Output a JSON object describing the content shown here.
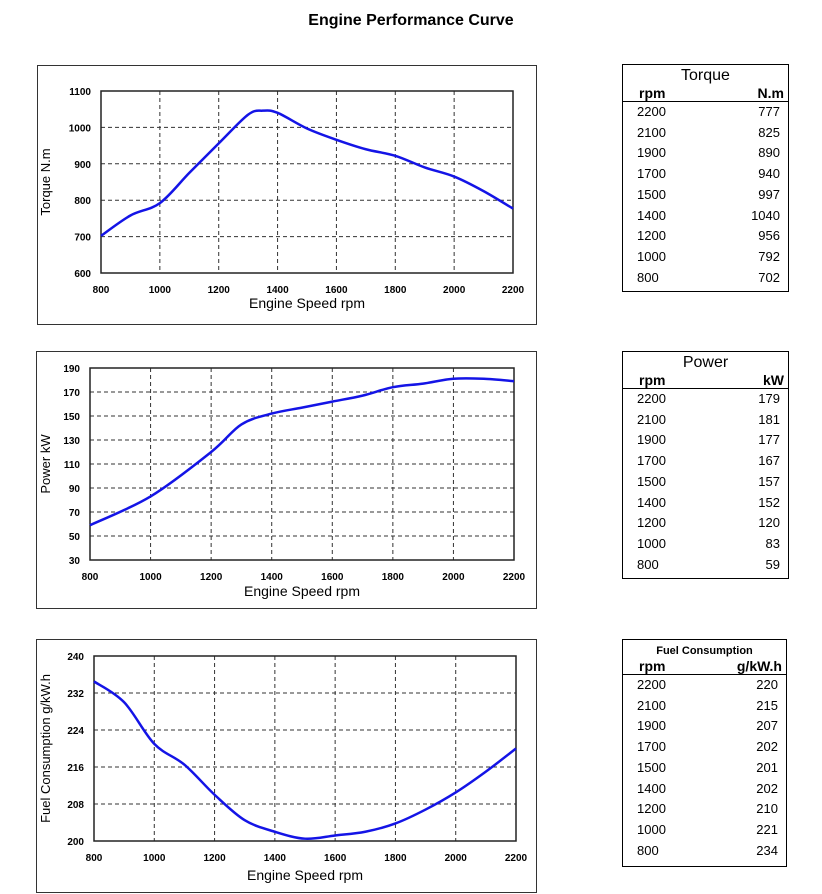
{
  "title": "Engine Performance Curve",
  "chart_data": [
    {
      "type": "line",
      "xlabel": "Engine Speed rpm",
      "ylabel": "Torque N.m",
      "xlim": [
        800,
        2200
      ],
      "ylim": [
        600,
        1100
      ],
      "xticks": [
        800,
        1000,
        1200,
        1400,
        1600,
        1800,
        2000,
        2200
      ],
      "yticks": [
        600,
        700,
        800,
        900,
        1000,
        1100
      ],
      "grid": true,
      "color": "#1414e6",
      "x": [
        800,
        900,
        1000,
        1100,
        1200,
        1300,
        1350,
        1400,
        1500,
        1600,
        1700,
        1800,
        1900,
        2000,
        2100,
        2200
      ],
      "y": [
        702,
        758,
        792,
        875,
        956,
        1035,
        1046,
        1040,
        997,
        966,
        940,
        922,
        890,
        865,
        825,
        777
      ]
    },
    {
      "type": "line",
      "xlabel": "Engine Speed rpm",
      "ylabel": "Power kW",
      "xlim": [
        800,
        2200
      ],
      "ylim": [
        30,
        190
      ],
      "xticks": [
        800,
        1000,
        1200,
        1400,
        1600,
        1800,
        2000,
        2200
      ],
      "yticks": [
        30,
        50,
        70,
        90,
        110,
        130,
        150,
        170,
        190
      ],
      "grid": true,
      "color": "#1414e6",
      "x": [
        800,
        1000,
        1200,
        1300,
        1400,
        1500,
        1600,
        1700,
        1800,
        1900,
        2000,
        2100,
        2200
      ],
      "y": [
        59,
        83,
        120,
        143,
        152,
        157,
        162,
        167,
        174,
        177,
        181,
        181,
        179
      ]
    },
    {
      "type": "line",
      "xlabel": "Engine Speed rpm",
      "ylabel": "Fuel Consumption g/kW.h",
      "xlim": [
        800,
        2200
      ],
      "ylim": [
        200,
        240
      ],
      "xticks": [
        800,
        1000,
        1200,
        1400,
        1600,
        1800,
        2000,
        2200
      ],
      "yticks": [
        200,
        208,
        216,
        224,
        232,
        240
      ],
      "grid": true,
      "color": "#1414e6",
      "x": [
        800,
        900,
        1000,
        1100,
        1200,
        1300,
        1400,
        1500,
        1600,
        1700,
        1800,
        1900,
        2000,
        2100,
        2200
      ],
      "y": [
        234.5,
        230,
        221,
        216.5,
        210,
        204.5,
        202,
        200.5,
        201.2,
        202,
        203.8,
        206.8,
        210.5,
        215,
        220
      ]
    }
  ],
  "tables": [
    {
      "title": "Torque",
      "col1": "rpm",
      "col2": "N.m",
      "rows": [
        [
          "2200",
          "777"
        ],
        [
          "2100",
          "825"
        ],
        [
          "1900",
          "890"
        ],
        [
          "1700",
          "940"
        ],
        [
          "1500",
          "997"
        ],
        [
          "1400",
          "1040"
        ],
        [
          "1200",
          "956"
        ],
        [
          "1000",
          "792"
        ],
        [
          "800",
          "702"
        ]
      ]
    },
    {
      "title": "Power",
      "col1": "rpm",
      "col2": "kW",
      "rows": [
        [
          "2200",
          "179"
        ],
        [
          "2100",
          "181"
        ],
        [
          "1900",
          "177"
        ],
        [
          "1700",
          "167"
        ],
        [
          "1500",
          "157"
        ],
        [
          "1400",
          "152"
        ],
        [
          "1200",
          "120"
        ],
        [
          "1000",
          "83"
        ],
        [
          "800",
          "59"
        ]
      ]
    },
    {
      "title": "Fuel Consumption",
      "col1": "rpm",
      "col2": "g/kW.h",
      "rows": [
        [
          "2200",
          "220"
        ],
        [
          "2100",
          "215"
        ],
        [
          "1900",
          "207"
        ],
        [
          "1700",
          "202"
        ],
        [
          "1500",
          "201"
        ],
        [
          "1400",
          "202"
        ],
        [
          "1200",
          "210"
        ],
        [
          "1000",
          "221"
        ],
        [
          "800",
          "234"
        ]
      ]
    }
  ]
}
